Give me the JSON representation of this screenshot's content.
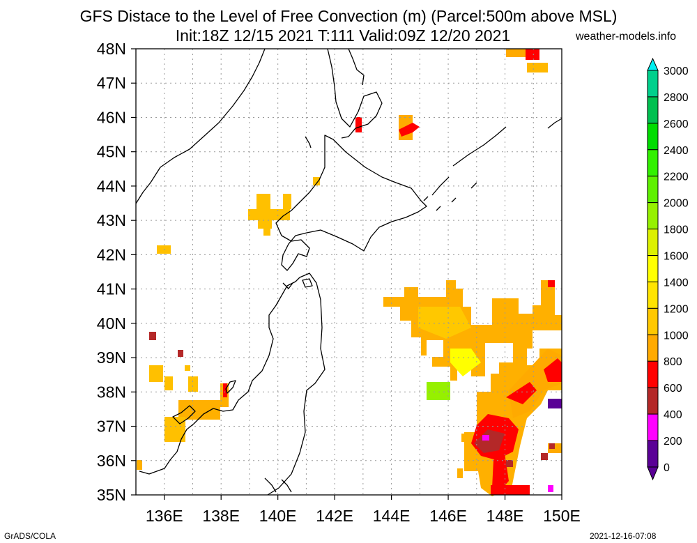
{
  "header": {
    "title_line1": "GFS Distace to the Level of Free Convection (m) (Parcel:500m above MSL)",
    "title_line2": "Init:18Z 12/15 2021 T:111 Valid:09Z 12/20 2021",
    "credit": "weather-models.info"
  },
  "map": {
    "lat_labels": [
      "48N",
      "47N",
      "46N",
      "45N",
      "44N",
      "43N",
      "42N",
      "41N",
      "40N",
      "39N",
      "38N",
      "37N",
      "36N",
      "35N"
    ],
    "lon_labels": [
      "136E",
      "138E",
      "140E",
      "142E",
      "144E",
      "146E",
      "148E",
      "150E"
    ],
    "lat_range": [
      35,
      48
    ],
    "lon_range": [
      135,
      150
    ],
    "grid": true
  },
  "colorbar": {
    "labels": [
      "3000",
      "2800",
      "2600",
      "2400",
      "2200",
      "2000",
      "1800",
      "1600",
      "1400",
      "1200",
      "1000",
      "800",
      "600",
      "400",
      "200",
      "0"
    ],
    "colors": [
      "#00f0f0",
      "#00d08c",
      "#00c050",
      "#00dc00",
      "#32f000",
      "#5ef000",
      "#96f000",
      "#dcf000",
      "#ffff00",
      "#ffe400",
      "#ffc800",
      "#ffaa00",
      "#ff0000",
      "#b42828",
      "#ff00ff",
      "#5a0096"
    ]
  },
  "footer": {
    "left": "GrADS/COLA",
    "right": "2021-12-16-07:08"
  }
}
